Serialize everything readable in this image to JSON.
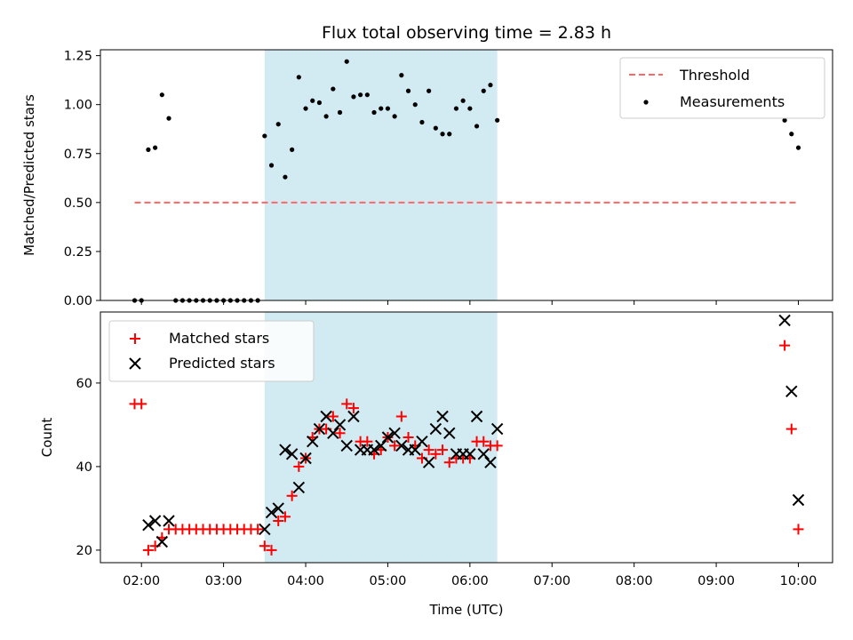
{
  "chart_data": [
    {
      "type": "scatter",
      "title": "Flux total observing time = 2.83 h",
      "xlabel": "",
      "ylabel": "Matched/Predicted stars",
      "xlim": [
        "01:30",
        "10:25"
      ],
      "ylim": [
        0,
        1.28
      ],
      "yticks": [
        "0.00",
        "0.25",
        "0.50",
        "0.75",
        "1.00",
        "1.25"
      ],
      "ytick_values": [
        0,
        0.25,
        0.5,
        0.75,
        1.0,
        1.25
      ],
      "shaded_region": {
        "from": "03:30",
        "to": "06:20",
        "color": "#add8e6"
      },
      "legend_position": "top-right",
      "threshold": {
        "name": "Threshold",
        "value": 0.5,
        "from": "01:55",
        "to": "10:00",
        "color": "#ff6666"
      },
      "series": [
        {
          "name": "Measurements",
          "color": "#000000",
          "marker": "dot",
          "x": [
            "01:55",
            "02:00",
            "02:05",
            "02:10",
            "02:15",
            "02:20",
            "02:25",
            "02:30",
            "02:35",
            "02:40",
            "02:45",
            "02:50",
            "02:55",
            "03:00",
            "03:05",
            "03:10",
            "03:15",
            "03:20",
            "03:25",
            "03:30",
            "03:35",
            "03:40",
            "03:45",
            "03:50",
            "03:55",
            "04:00",
            "04:05",
            "04:10",
            "04:15",
            "04:20",
            "04:25",
            "04:30",
            "04:35",
            "04:40",
            "04:45",
            "04:50",
            "04:55",
            "05:00",
            "05:05",
            "05:10",
            "05:15",
            "05:20",
            "05:25",
            "05:30",
            "05:35",
            "05:40",
            "05:45",
            "05:50",
            "05:55",
            "06:00",
            "06:05",
            "06:10",
            "06:15",
            "06:20",
            "09:50",
            "09:55",
            "10:00"
          ],
          "y": [
            0,
            0,
            0.77,
            0.78,
            1.05,
            0.93,
            0,
            0,
            0,
            0,
            0,
            0,
            0,
            0,
            0,
            0,
            0,
            0,
            0,
            0.84,
            0.69,
            0.9,
            0.63,
            0.77,
            1.14,
            0.98,
            1.02,
            1.01,
            0.94,
            1.08,
            0.96,
            1.22,
            1.04,
            1.05,
            1.05,
            0.96,
            0.98,
            0.98,
            0.94,
            1.15,
            1.07,
            1.0,
            0.91,
            1.07,
            0.88,
            0.85,
            0.85,
            0.98,
            1.02,
            0.98,
            0.89,
            1.07,
            1.1,
            0.92,
            0.92,
            0.85,
            0.78
          ]
        }
      ]
    },
    {
      "type": "scatter",
      "title": "",
      "xlabel": "Time (UTC)",
      "ylabel": "Count",
      "xlim": [
        "01:30",
        "10:25"
      ],
      "ylim": [
        17,
        77
      ],
      "yticks": [
        "20",
        "40",
        "60"
      ],
      "ytick_values": [
        20,
        40,
        60
      ],
      "xticks": [
        "02:00",
        "03:00",
        "04:00",
        "05:00",
        "06:00",
        "07:00",
        "08:00",
        "09:00",
        "10:00"
      ],
      "shaded_region": {
        "from": "03:30",
        "to": "06:20",
        "color": "#add8e6"
      },
      "legend_position": "top-left",
      "series": [
        {
          "name": "Matched stars",
          "color": "#ff0000",
          "marker": "plus",
          "x": [
            "01:55",
            "02:00",
            "02:05",
            "02:10",
            "02:15",
            "02:20",
            "02:25",
            "02:30",
            "02:35",
            "02:40",
            "02:45",
            "02:50",
            "02:55",
            "03:00",
            "03:05",
            "03:10",
            "03:15",
            "03:20",
            "03:25",
            "03:30",
            "03:35",
            "03:40",
            "03:45",
            "03:50",
            "03:55",
            "04:00",
            "04:05",
            "04:10",
            "04:15",
            "04:20",
            "04:25",
            "04:30",
            "04:35",
            "04:40",
            "04:45",
            "04:50",
            "04:55",
            "05:00",
            "05:05",
            "05:10",
            "05:15",
            "05:20",
            "05:25",
            "05:30",
            "05:35",
            "05:40",
            "05:45",
            "05:50",
            "05:55",
            "06:00",
            "06:05",
            "06:10",
            "06:15",
            "06:20",
            "09:50",
            "09:55",
            "10:00"
          ],
          "y": [
            55,
            55,
            20,
            21,
            23,
            25,
            25,
            25,
            25,
            25,
            25,
            25,
            25,
            25,
            25,
            25,
            25,
            25,
            25,
            21,
            20,
            27,
            28,
            33,
            40,
            42,
            47,
            49,
            49,
            52,
            48,
            55,
            54,
            46,
            46,
            43,
            44,
            47,
            45,
            52,
            47,
            45,
            42,
            44,
            43,
            44,
            41,
            42,
            42,
            42,
            46,
            46,
            45,
            45,
            69,
            49,
            25
          ]
        },
        {
          "name": "Predicted stars",
          "color": "#000000",
          "marker": "x",
          "x": [
            "02:05",
            "02:10",
            "02:15",
            "02:20",
            "03:30",
            "03:35",
            "03:40",
            "03:45",
            "03:50",
            "03:55",
            "04:00",
            "04:05",
            "04:10",
            "04:15",
            "04:20",
            "04:25",
            "04:30",
            "04:35",
            "04:40",
            "04:45",
            "04:50",
            "04:55",
            "05:00",
            "05:05",
            "05:10",
            "05:15",
            "05:20",
            "05:25",
            "05:30",
            "05:35",
            "05:40",
            "05:45",
            "05:50",
            "05:55",
            "06:00",
            "06:05",
            "06:10",
            "06:15",
            "06:20",
            "09:50",
            "09:55",
            "10:00"
          ],
          "y": [
            26,
            27,
            22,
            27,
            25,
            29,
            30,
            44,
            43,
            35,
            42,
            46,
            49,
            52,
            48,
            50,
            45,
            52,
            44,
            44,
            44,
            45,
            47,
            48,
            45,
            44,
            44,
            46,
            41,
            49,
            52,
            48,
            43,
            43,
            43,
            52,
            43,
            41,
            49,
            75,
            58,
            32
          ]
        }
      ]
    }
  ]
}
